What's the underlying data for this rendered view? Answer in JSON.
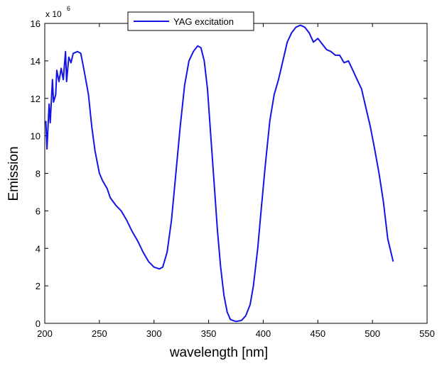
{
  "chart_data": {
    "type": "line",
    "x_label": "wavelength [nm]",
    "y_label": "Emission",
    "scale_label": "x 10",
    "scale_exponent": "6",
    "x": [
      201,
      202,
      204,
      205,
      207,
      208,
      210,
      211,
      213,
      215,
      217,
      218,
      219,
      220,
      222,
      224,
      226,
      230,
      233,
      236,
      240,
      243,
      246,
      250,
      253,
      257,
      260,
      265,
      270,
      275,
      280,
      285,
      290,
      295,
      300,
      305,
      308,
      312,
      316,
      320,
      324,
      328,
      332,
      336,
      340,
      343,
      346,
      349,
      352,
      355,
      358,
      361,
      364,
      367,
      370,
      375,
      380,
      384,
      388,
      391,
      395,
      398,
      402,
      406,
      410,
      414,
      418,
      422,
      426,
      430,
      434,
      438,
      442,
      446,
      450,
      454,
      458,
      462,
      466,
      470,
      474,
      478,
      482,
      486,
      490,
      494,
      498,
      502,
      506,
      510,
      514,
      519
    ],
    "series": [
      {
        "name": "YAG excitation",
        "color": "#1414e6",
        "values": [
          10.8,
          9.3,
          11.7,
          10.7,
          13.0,
          11.8,
          12.2,
          13.5,
          12.9,
          13.6,
          13.0,
          13.8,
          14.5,
          12.9,
          14.2,
          13.9,
          14.4,
          14.5,
          14.4,
          13.5,
          12.2,
          10.5,
          9.2,
          8.0,
          7.6,
          7.2,
          6.7,
          6.3,
          6.0,
          5.5,
          4.9,
          4.4,
          3.8,
          3.3,
          3.0,
          2.9,
          3.0,
          3.8,
          5.5,
          8.0,
          10.5,
          12.7,
          14.0,
          14.5,
          14.8,
          14.7,
          14.0,
          12.5,
          10.0,
          7.5,
          5.0,
          3.0,
          1.5,
          0.6,
          0.2,
          0.1,
          0.15,
          0.4,
          1.0,
          2.0,
          4.0,
          6.0,
          8.5,
          10.8,
          12.2,
          13.0,
          14.0,
          15.0,
          15.5,
          15.8,
          15.9,
          15.8,
          15.5,
          15.0,
          15.2,
          14.9,
          14.6,
          14.5,
          14.3,
          14.3,
          13.9,
          14.0,
          13.5,
          13.0,
          12.5,
          11.5,
          10.5,
          9.3,
          8.0,
          6.5,
          4.5,
          3.3
        ]
      }
    ],
    "xlim": [
      200,
      550
    ],
    "xticks": [
      200,
      250,
      300,
      350,
      400,
      450,
      500,
      550
    ],
    "ylim": [
      0,
      16
    ],
    "yticks": [
      0,
      2,
      4,
      6,
      8,
      10,
      12,
      14,
      16
    ],
    "grid": false,
    "legend": "north"
  }
}
